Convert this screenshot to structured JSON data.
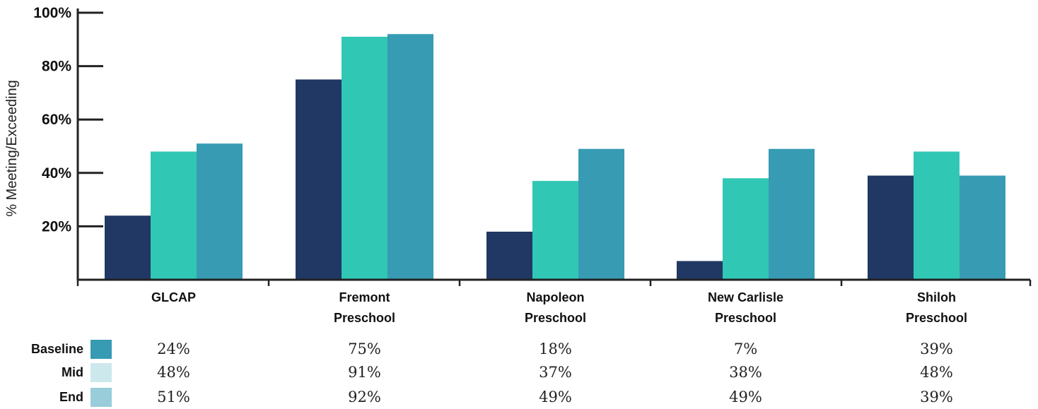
{
  "chart_data": {
    "type": "bar",
    "ylabel": "% Meeting/Exceeding",
    "ylim": [
      0,
      100
    ],
    "yticks": [
      "20%",
      "40%",
      "60%",
      "80%",
      "100%"
    ],
    "categories": [
      [
        "GLCAP"
      ],
      [
        "Fremont",
        "Preschool"
      ],
      [
        "Napoleon",
        "Preschool"
      ],
      [
        "New Carlisle",
        "Preschool"
      ],
      [
        "Shiloh",
        "Preschool"
      ]
    ],
    "series": [
      {
        "name": "Baseline",
        "values": [
          24,
          75,
          18,
          7,
          39
        ],
        "labels": [
          "24%",
          "75%",
          "18%",
          "7%",
          "39%"
        ]
      },
      {
        "name": "Mid",
        "values": [
          48,
          91,
          37,
          38,
          48
        ],
        "labels": [
          "48%",
          "91%",
          "37%",
          "38%",
          "48%"
        ]
      },
      {
        "name": "End",
        "values": [
          51,
          92,
          49,
          49,
          39
        ],
        "labels": [
          "51%",
          "92%",
          "49%",
          "49%",
          "39%"
        ]
      }
    ],
    "bar_colors": [
      "#213864",
      "#31c7b5",
      "#379bb3"
    ],
    "legend_swatch_colors": [
      "#379bb3",
      "#cde8ed",
      "#98cdd9"
    ],
    "grid": false,
    "legend": "bottom-left data table"
  }
}
